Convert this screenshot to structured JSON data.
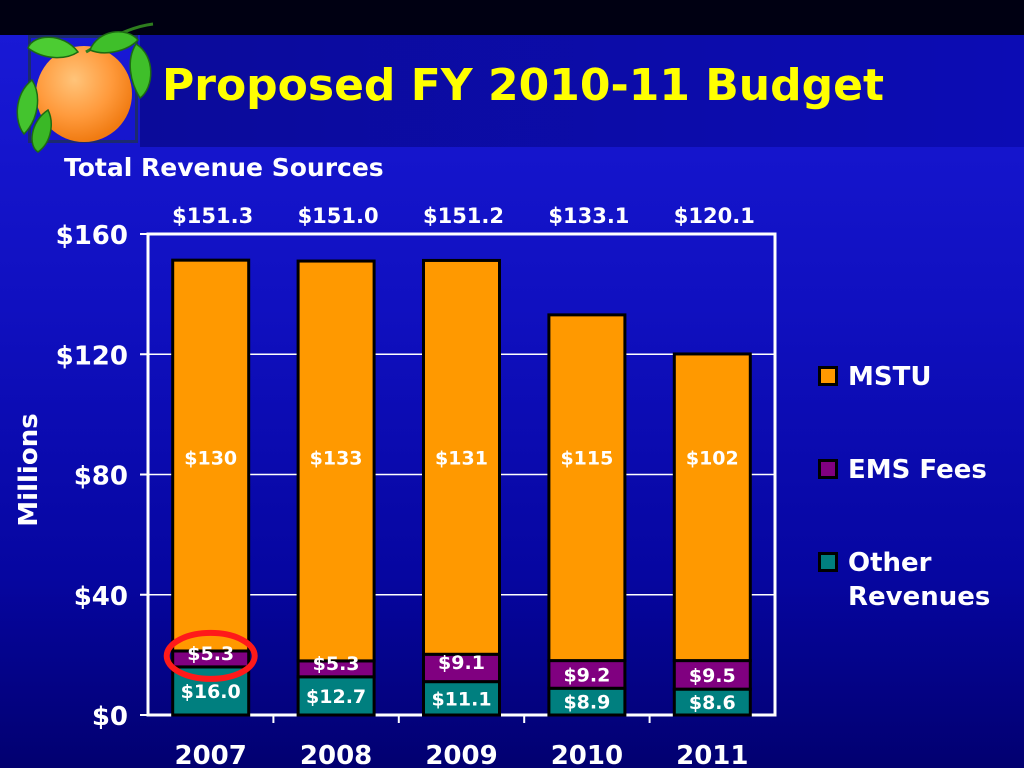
{
  "slide": {
    "title": "Proposed FY 2010-11 Budget",
    "subtitle": "Total Revenue Sources"
  },
  "colors": {
    "mstu": "#ff9900",
    "ems": "#800080",
    "other": "#007f7f",
    "title": "#ffff00",
    "text": "#ffffff"
  },
  "legend": [
    {
      "label": "MSTU",
      "color": "#ff9900"
    },
    {
      "label": "EMS Fees",
      "color": "#800080"
    },
    {
      "label": "Other Revenues",
      "color": "#007f7f"
    }
  ],
  "chart_data": {
    "type": "bar",
    "stacked": true,
    "categories": [
      "2007",
      "2008",
      "2009",
      "2010",
      "2011"
    ],
    "series": [
      {
        "name": "Other Revenues",
        "values": [
          16.0,
          12.7,
          11.1,
          8.9,
          8.6
        ],
        "labels": [
          "$16.0",
          "$12.7",
          "$11.1",
          "$8.9",
          "$8.6"
        ],
        "color": "#007f7f"
      },
      {
        "name": "EMS Fees",
        "values": [
          5.3,
          5.3,
          9.1,
          9.2,
          9.5
        ],
        "labels": [
          "$5.3",
          "$5.3",
          "$9.1",
          "$9.2",
          "$9.5"
        ],
        "color": "#800080"
      },
      {
        "name": "MSTU",
        "values": [
          130,
          133,
          131,
          115,
          102
        ],
        "labels": [
          "$130",
          "$133",
          "$131",
          "$115",
          "$102"
        ],
        "color": "#ff9900"
      }
    ],
    "totals": [
      "$151.3",
      "$151.0",
      "$151.2",
      "$133.1",
      "$120.1"
    ],
    "ylabel": "Millions",
    "ylim": [
      0,
      160
    ],
    "yticks": [
      0,
      40,
      80,
      120,
      160
    ],
    "ytick_labels": [
      "$0",
      "$40",
      "$80",
      "$120",
      "$160"
    ],
    "grid": true,
    "legend_position": "right",
    "highlight": {
      "series": "EMS Fees",
      "category": "2007",
      "style": "red ellipse"
    }
  }
}
